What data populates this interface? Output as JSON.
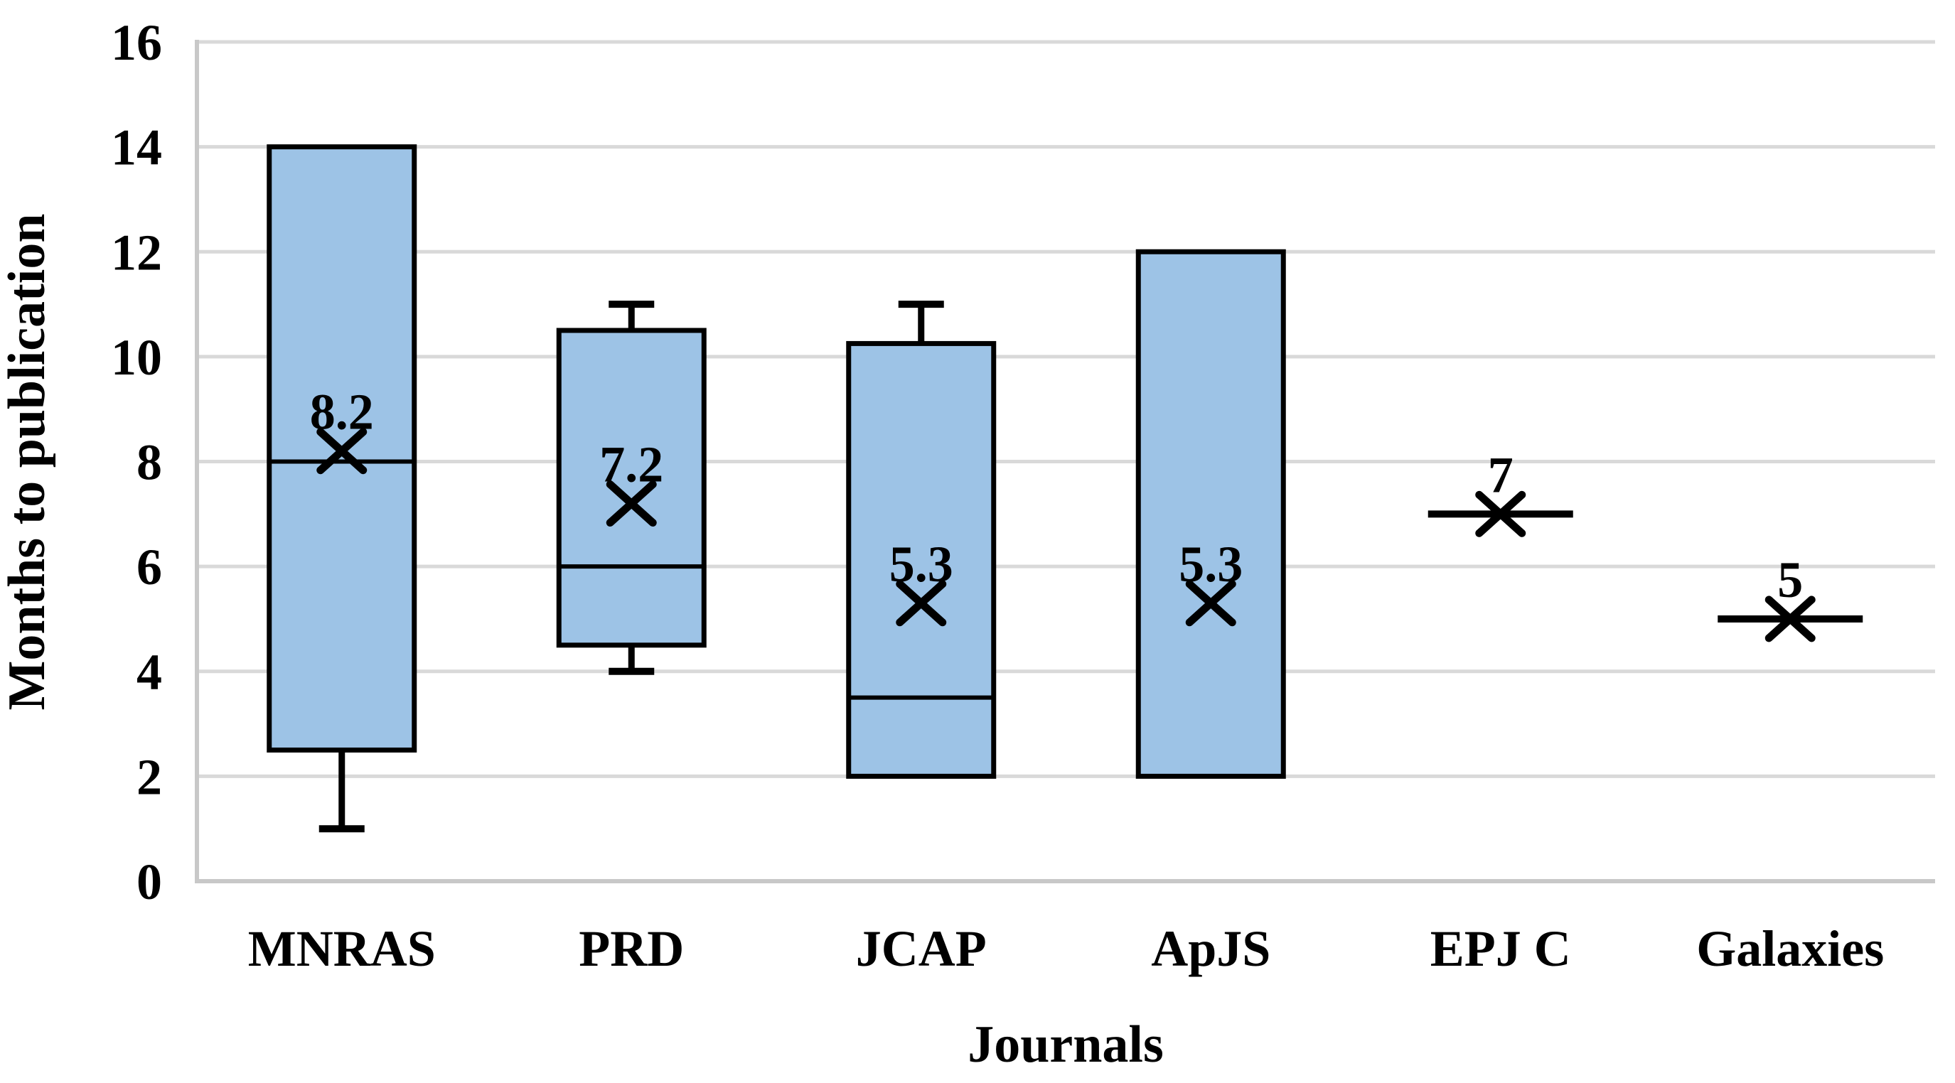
{
  "chart_data": {
    "type": "boxplot",
    "title": "",
    "xlabel": "Journals",
    "ylabel": "Months to publication",
    "ylim": [
      0,
      16
    ],
    "yticks": [
      0,
      2,
      4,
      6,
      8,
      10,
      12,
      14,
      16
    ],
    "ytick_labels": [
      "0",
      "2",
      "4",
      "6",
      "8",
      "10",
      "12",
      "14",
      "16"
    ],
    "grid": true,
    "legend": "none",
    "categories": [
      "MNRAS",
      "PRD",
      "JCAP",
      "ApJS",
      "EPJ C",
      "Galaxies"
    ],
    "series": [
      {
        "name": "MNRAS",
        "whisker_low": 1,
        "q1": 2.5,
        "median": 8,
        "q3": 14,
        "whisker_high": null,
        "mean": 8.2,
        "mean_label": "8.2"
      },
      {
        "name": "PRD",
        "whisker_low": 4,
        "q1": 4.5,
        "median": 6,
        "q3": 10.5,
        "whisker_high": 11,
        "mean": 7.2,
        "mean_label": "7.2"
      },
      {
        "name": "JCAP",
        "whisker_low": null,
        "q1": 2,
        "median": 3.5,
        "q3": 10.25,
        "whisker_high": 11,
        "mean": 5.3,
        "mean_label": "5.3"
      },
      {
        "name": "ApJS",
        "whisker_low": null,
        "q1": 2,
        "median": null,
        "q3": 12,
        "whisker_high": null,
        "mean": 5.3,
        "mean_label": "5.3"
      },
      {
        "name": "EPJ C",
        "whisker_low": null,
        "q1": 7,
        "median": 7,
        "q3": 7,
        "whisker_high": null,
        "mean": 7,
        "mean_label": "7"
      },
      {
        "name": "Galaxies",
        "whisker_low": null,
        "q1": 5,
        "median": 5,
        "q3": 5,
        "whisker_high": null,
        "mean": 5,
        "mean_label": "5"
      }
    ],
    "colors": {
      "box_fill": "#9DC3E6",
      "box_border": "#000000",
      "median_line": "#000000",
      "whisker": "#000000",
      "mean_marker": "#000000",
      "gridline": "#D9D9D9",
      "axis_line": "#C8C8C8",
      "text": "#000000",
      "background": "#FFFFFF"
    }
  }
}
